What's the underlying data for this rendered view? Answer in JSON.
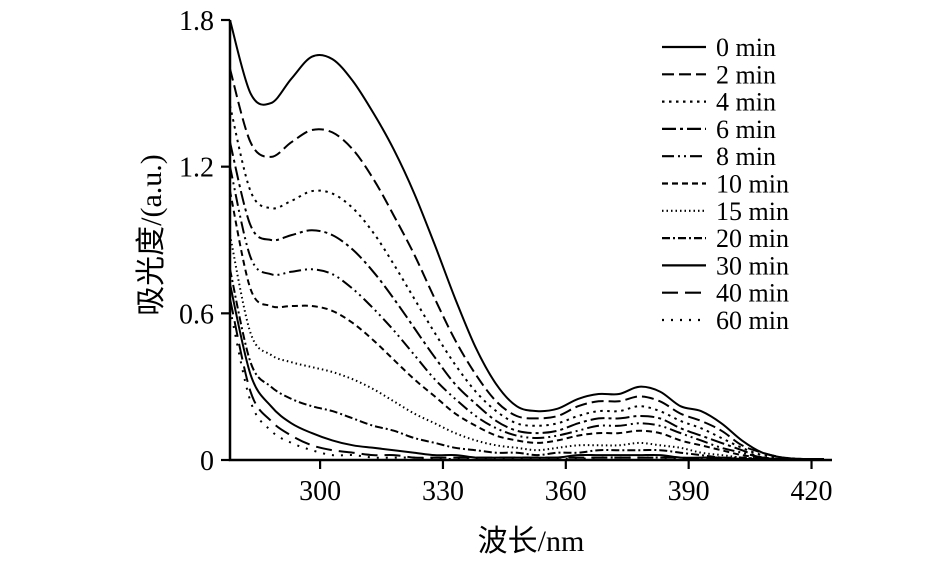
{
  "chart_data": {
    "type": "line",
    "title": "",
    "xlabel": "波长/nm",
    "ylabel": "吸光度/(a.u.)",
    "xlim": [
      278,
      425
    ],
    "ylim": [
      0,
      1.8
    ],
    "xticks": [
      300,
      330,
      360,
      390,
      420
    ],
    "yticks": [
      0,
      0.6,
      1.2,
      1.8
    ],
    "grid": false,
    "legend_position": "top-right",
    "line_color": "#000000",
    "background_color": "#ffffff",
    "x": [
      278,
      283,
      288,
      293,
      298,
      303,
      308,
      313,
      318,
      323,
      328,
      333,
      338,
      343,
      348,
      353,
      358,
      363,
      368,
      373,
      378,
      383,
      388,
      393,
      398,
      403,
      408,
      413,
      418,
      423
    ],
    "series": [
      {
        "name": "0 min",
        "line_style": "solid",
        "dash": "",
        "values": [
          1.8,
          1.5,
          1.46,
          1.56,
          1.65,
          1.64,
          1.55,
          1.42,
          1.27,
          1.09,
          0.88,
          0.66,
          0.46,
          0.31,
          0.22,
          0.2,
          0.21,
          0.25,
          0.27,
          0.27,
          0.3,
          0.28,
          0.22,
          0.2,
          0.15,
          0.08,
          0.03,
          0.01,
          0.0,
          0.0
        ]
      },
      {
        "name": "2 min",
        "line_style": "dashed",
        "dash": "12,5",
        "values": [
          1.6,
          1.3,
          1.24,
          1.3,
          1.35,
          1.34,
          1.27,
          1.15,
          1.0,
          0.84,
          0.66,
          0.49,
          0.35,
          0.24,
          0.18,
          0.17,
          0.18,
          0.22,
          0.24,
          0.24,
          0.26,
          0.24,
          0.19,
          0.16,
          0.12,
          0.06,
          0.03,
          0.01,
          0.0,
          0.0
        ]
      },
      {
        "name": "4 min",
        "line_style": "dotted",
        "dash": "2.5,4.5",
        "values": [
          1.45,
          1.1,
          1.03,
          1.06,
          1.1,
          1.09,
          1.03,
          0.93,
          0.8,
          0.66,
          0.52,
          0.39,
          0.28,
          0.2,
          0.15,
          0.14,
          0.15,
          0.18,
          0.2,
          0.2,
          0.22,
          0.2,
          0.16,
          0.13,
          0.09,
          0.05,
          0.02,
          0.01,
          0.0,
          0.0
        ]
      },
      {
        "name": "6 min",
        "line_style": "dash-dot",
        "dash": "14,4,3,4",
        "values": [
          1.3,
          0.96,
          0.9,
          0.92,
          0.94,
          0.92,
          0.86,
          0.77,
          0.66,
          0.54,
          0.42,
          0.31,
          0.23,
          0.16,
          0.12,
          0.11,
          0.12,
          0.15,
          0.17,
          0.17,
          0.18,
          0.17,
          0.13,
          0.1,
          0.07,
          0.04,
          0.01,
          0.0,
          0.0,
          0.0
        ]
      },
      {
        "name": "8 min",
        "line_style": "dash-dot-dot",
        "dash": "12,4,2,4,2,4",
        "values": [
          1.2,
          0.83,
          0.76,
          0.77,
          0.78,
          0.76,
          0.7,
          0.62,
          0.53,
          0.43,
          0.33,
          0.25,
          0.18,
          0.13,
          0.1,
          0.09,
          0.1,
          0.12,
          0.14,
          0.14,
          0.15,
          0.14,
          0.11,
          0.08,
          0.05,
          0.03,
          0.01,
          0.0,
          0.0,
          0.0
        ]
      },
      {
        "name": "10 min",
        "line_style": "short-dash",
        "dash": "6,4",
        "values": [
          1.1,
          0.7,
          0.63,
          0.63,
          0.63,
          0.61,
          0.56,
          0.49,
          0.41,
          0.33,
          0.26,
          0.19,
          0.14,
          0.1,
          0.08,
          0.07,
          0.08,
          0.1,
          0.11,
          0.11,
          0.12,
          0.11,
          0.08,
          0.06,
          0.04,
          0.02,
          0.01,
          0.0,
          0.0,
          0.0
        ]
      },
      {
        "name": "15 min",
        "line_style": "fine-dot",
        "dash": "1.5,3",
        "values": [
          0.92,
          0.52,
          0.43,
          0.4,
          0.38,
          0.36,
          0.33,
          0.29,
          0.24,
          0.19,
          0.15,
          0.11,
          0.08,
          0.06,
          0.05,
          0.04,
          0.05,
          0.06,
          0.06,
          0.06,
          0.07,
          0.06,
          0.05,
          0.03,
          0.02,
          0.01,
          0.0,
          0.0,
          0.0,
          0.0
        ]
      },
      {
        "name": "20 min",
        "line_style": "dash-dot",
        "dash": "8,3,2,3",
        "values": [
          0.78,
          0.4,
          0.3,
          0.25,
          0.22,
          0.2,
          0.17,
          0.14,
          0.12,
          0.09,
          0.07,
          0.05,
          0.04,
          0.03,
          0.03,
          0.02,
          0.03,
          0.03,
          0.04,
          0.04,
          0.04,
          0.04,
          0.03,
          0.02,
          0.01,
          0.01,
          0.0,
          0.0,
          0.0,
          0.0
        ]
      },
      {
        "name": "30 min",
        "line_style": "solid",
        "dash": "",
        "values": [
          0.72,
          0.35,
          0.22,
          0.15,
          0.11,
          0.08,
          0.06,
          0.05,
          0.04,
          0.03,
          0.02,
          0.02,
          0.01,
          0.01,
          0.01,
          0.01,
          0.01,
          0.02,
          0.02,
          0.02,
          0.02,
          0.02,
          0.01,
          0.01,
          0.01,
          0.0,
          0.0,
          0.0,
          0.0,
          0.0
        ]
      },
      {
        "name": "40 min",
        "line_style": "long-dash",
        "dash": "16,7",
        "values": [
          0.66,
          0.28,
          0.16,
          0.1,
          0.06,
          0.04,
          0.03,
          0.02,
          0.02,
          0.01,
          0.01,
          0.01,
          0.01,
          0.01,
          0.01,
          0.01,
          0.01,
          0.01,
          0.01,
          0.01,
          0.01,
          0.01,
          0.01,
          0.0,
          0.0,
          0.0,
          0.0,
          0.0,
          0.0,
          0.0
        ]
      },
      {
        "name": "60 min",
        "line_style": "sparse-dot",
        "dash": "2,7",
        "values": [
          0.62,
          0.24,
          0.12,
          0.07,
          0.04,
          0.02,
          0.02,
          0.01,
          0.01,
          0.01,
          0.0,
          0.0,
          0.0,
          0.0,
          0.0,
          0.0,
          0.0,
          0.0,
          0.01,
          0.01,
          0.01,
          0.01,
          0.0,
          0.0,
          0.0,
          0.0,
          0.0,
          0.0,
          0.0,
          0.0
        ]
      }
    ]
  }
}
